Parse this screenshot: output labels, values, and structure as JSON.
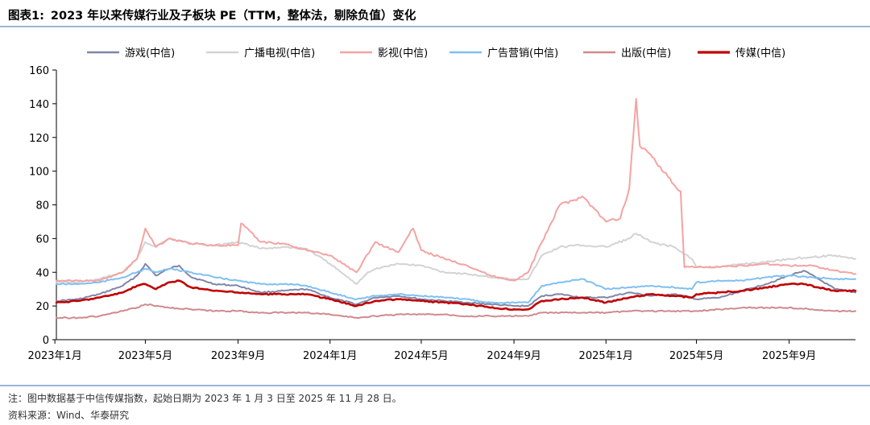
{
  "figure": {
    "label": "图表1:",
    "title": "2023 年以来传媒行业及子板块 PE（TTM，整体法，剔除负值）变化"
  },
  "chart_data": {
    "type": "line",
    "y_axis": {
      "min": 0,
      "max": 160,
      "ticks": [
        0,
        20,
        40,
        60,
        80,
        100,
        120,
        140,
        160
      ]
    },
    "x_axis": {
      "start": "2023-01-03",
      "end": "2025-11-28",
      "tick_dates": [
        "2023-01-01",
        "2023-05-01",
        "2023-09-01",
        "2024-01-01",
        "2024-05-01",
        "2024-09-01",
        "2025-01-01",
        "2025-05-01",
        "2025-09-01"
      ],
      "tick_labels": [
        "2023年1月",
        "2023年5月",
        "2023年9月",
        "2024年1月",
        "2024年5月",
        "2024年9月",
        "2025年1月",
        "2025年5月",
        "2025年9月"
      ]
    },
    "grid": false,
    "legend_position": "top",
    "series": [
      {
        "name": "游戏(中信)",
        "color": "#7f86a8",
        "width": 2.6,
        "points": [
          [
            "2023-01-03",
            23
          ],
          [
            "2023-02-01",
            24
          ],
          [
            "2023-03-01",
            27
          ],
          [
            "2023-04-01",
            32
          ],
          [
            "2023-04-20",
            38
          ],
          [
            "2023-05-01",
            45
          ],
          [
            "2023-05-15",
            38
          ],
          [
            "2023-06-01",
            42
          ],
          [
            "2023-06-15",
            44
          ],
          [
            "2023-07-01",
            37
          ],
          [
            "2023-08-01",
            33
          ],
          [
            "2023-09-01",
            32
          ],
          [
            "2023-10-01",
            28
          ],
          [
            "2023-11-01",
            29
          ],
          [
            "2023-12-01",
            30
          ],
          [
            "2024-01-01",
            25
          ],
          [
            "2024-02-05",
            21
          ],
          [
            "2024-03-01",
            25
          ],
          [
            "2024-04-01",
            26
          ],
          [
            "2024-05-01",
            24
          ],
          [
            "2024-06-01",
            23
          ],
          [
            "2024-07-01",
            22
          ],
          [
            "2024-08-01",
            21
          ],
          [
            "2024-09-01",
            20
          ],
          [
            "2024-09-20",
            20
          ],
          [
            "2024-10-08",
            26
          ],
          [
            "2024-11-01",
            27
          ],
          [
            "2024-12-01",
            25
          ],
          [
            "2025-01-01",
            25
          ],
          [
            "2025-02-01",
            28
          ],
          [
            "2025-03-01",
            26
          ],
          [
            "2025-04-01",
            27
          ],
          [
            "2025-04-25",
            25
          ],
          [
            "2025-05-01",
            24
          ],
          [
            "2025-06-01",
            25
          ],
          [
            "2025-07-01",
            29
          ],
          [
            "2025-08-01",
            33
          ],
          [
            "2025-09-01",
            38
          ],
          [
            "2025-09-20",
            41
          ],
          [
            "2025-10-10",
            36
          ],
          [
            "2025-11-01",
            30
          ],
          [
            "2025-11-28",
            28
          ]
        ]
      },
      {
        "name": "广播电视(中信)",
        "color": "#d3d3d3",
        "width": 2.6,
        "points": [
          [
            "2023-01-03",
            34
          ],
          [
            "2023-02-01",
            34
          ],
          [
            "2023-03-01",
            36
          ],
          [
            "2023-04-01",
            40
          ],
          [
            "2023-04-20",
            48
          ],
          [
            "2023-05-01",
            58
          ],
          [
            "2023-05-15",
            55
          ],
          [
            "2023-06-01",
            60
          ],
          [
            "2023-07-01",
            57
          ],
          [
            "2023-08-01",
            56
          ],
          [
            "2023-09-01",
            58
          ],
          [
            "2023-10-01",
            54
          ],
          [
            "2023-11-01",
            55
          ],
          [
            "2023-12-01",
            54
          ],
          [
            "2024-01-01",
            45
          ],
          [
            "2024-02-05",
            33
          ],
          [
            "2024-02-20",
            40
          ],
          [
            "2024-03-01",
            42
          ],
          [
            "2024-04-01",
            45
          ],
          [
            "2024-05-01",
            44
          ],
          [
            "2024-06-01",
            40
          ],
          [
            "2024-07-01",
            39
          ],
          [
            "2024-08-01",
            37
          ],
          [
            "2024-09-01",
            36
          ],
          [
            "2024-09-20",
            36
          ],
          [
            "2024-10-08",
            50
          ],
          [
            "2024-11-01",
            55
          ],
          [
            "2024-12-01",
            56
          ],
          [
            "2025-01-01",
            55
          ],
          [
            "2025-02-01",
            60
          ],
          [
            "2025-02-10",
            63
          ],
          [
            "2025-03-01",
            58
          ],
          [
            "2025-04-01",
            55
          ],
          [
            "2025-04-25",
            48
          ],
          [
            "2025-05-01",
            43
          ],
          [
            "2025-06-01",
            43
          ],
          [
            "2025-07-01",
            45
          ],
          [
            "2025-08-01",
            46
          ],
          [
            "2025-09-01",
            48
          ],
          [
            "2025-10-01",
            49
          ],
          [
            "2025-11-01",
            50
          ],
          [
            "2025-11-28",
            48
          ]
        ]
      },
      {
        "name": "影视(中信)",
        "color": "#f4a3a3",
        "width": 2.6,
        "points": [
          [
            "2023-01-03",
            35
          ],
          [
            "2023-02-01",
            35
          ],
          [
            "2023-03-01",
            35
          ],
          [
            "2023-04-01",
            40
          ],
          [
            "2023-04-20",
            48
          ],
          [
            "2023-05-01",
            66
          ],
          [
            "2023-05-15",
            55
          ],
          [
            "2023-06-01",
            60
          ],
          [
            "2023-07-01",
            57
          ],
          [
            "2023-08-01",
            56
          ],
          [
            "2023-09-01",
            56
          ],
          [
            "2023-09-05",
            69
          ],
          [
            "2023-10-01",
            58
          ],
          [
            "2023-11-01",
            57
          ],
          [
            "2023-12-01",
            53
          ],
          [
            "2024-01-01",
            50
          ],
          [
            "2024-02-05",
            40
          ],
          [
            "2024-03-01",
            58
          ],
          [
            "2024-03-15",
            55
          ],
          [
            "2024-04-01",
            52
          ],
          [
            "2024-04-20",
            66
          ],
          [
            "2024-05-01",
            53
          ],
          [
            "2024-06-01",
            48
          ],
          [
            "2024-07-01",
            44
          ],
          [
            "2024-08-01",
            38
          ],
          [
            "2024-09-01",
            35
          ],
          [
            "2024-09-20",
            40
          ],
          [
            "2024-10-08",
            58
          ],
          [
            "2024-11-01",
            80
          ],
          [
            "2024-12-01",
            85
          ],
          [
            "2025-01-01",
            70
          ],
          [
            "2025-01-20",
            72
          ],
          [
            "2025-02-01",
            90
          ],
          [
            "2025-02-10",
            143
          ],
          [
            "2025-02-15",
            115
          ],
          [
            "2025-03-01",
            110
          ],
          [
            "2025-04-01",
            92
          ],
          [
            "2025-04-10",
            88
          ],
          [
            "2025-04-15",
            43
          ],
          [
            "2025-05-01",
            43
          ],
          [
            "2025-06-01",
            43
          ],
          [
            "2025-07-01",
            44
          ],
          [
            "2025-08-01",
            45
          ],
          [
            "2025-09-01",
            44
          ],
          [
            "2025-10-01",
            44
          ],
          [
            "2025-11-01",
            41
          ],
          [
            "2025-11-28",
            39
          ]
        ]
      },
      {
        "name": "广告营销(中信)",
        "color": "#7fc0f0",
        "width": 2.6,
        "points": [
          [
            "2023-01-03",
            33
          ],
          [
            "2023-02-01",
            33
          ],
          [
            "2023-03-01",
            34
          ],
          [
            "2023-04-01",
            37
          ],
          [
            "2023-04-20",
            40
          ],
          [
            "2023-05-01",
            42
          ],
          [
            "2023-05-15",
            40
          ],
          [
            "2023-06-01",
            42
          ],
          [
            "2023-07-01",
            40
          ],
          [
            "2023-08-01",
            37
          ],
          [
            "2023-09-01",
            35
          ],
          [
            "2023-10-01",
            33
          ],
          [
            "2023-11-01",
            33
          ],
          [
            "2023-12-01",
            32
          ],
          [
            "2024-01-01",
            28
          ],
          [
            "2024-02-05",
            24
          ],
          [
            "2024-03-01",
            26
          ],
          [
            "2024-04-01",
            27
          ],
          [
            "2024-05-01",
            26
          ],
          [
            "2024-06-01",
            25
          ],
          [
            "2024-07-01",
            24
          ],
          [
            "2024-08-01",
            22
          ],
          [
            "2024-09-01",
            22
          ],
          [
            "2024-09-20",
            22
          ],
          [
            "2024-10-08",
            32
          ],
          [
            "2024-11-01",
            34
          ],
          [
            "2024-12-01",
            36
          ],
          [
            "2025-01-01",
            30
          ],
          [
            "2025-02-01",
            31
          ],
          [
            "2025-03-01",
            32
          ],
          [
            "2025-04-01",
            31
          ],
          [
            "2025-04-25",
            30
          ],
          [
            "2025-05-01",
            34
          ],
          [
            "2025-06-01",
            35
          ],
          [
            "2025-07-01",
            35
          ],
          [
            "2025-08-01",
            37
          ],
          [
            "2025-09-01",
            38
          ],
          [
            "2025-10-01",
            37
          ],
          [
            "2025-11-01",
            36
          ],
          [
            "2025-11-28",
            36
          ]
        ]
      },
      {
        "name": "出版(中信)",
        "color": "#cf8a8e",
        "width": 2.6,
        "points": [
          [
            "2023-01-03",
            13
          ],
          [
            "2023-02-01",
            13
          ],
          [
            "2023-03-01",
            14
          ],
          [
            "2023-04-01",
            17
          ],
          [
            "2023-04-20",
            19
          ],
          [
            "2023-05-01",
            21
          ],
          [
            "2023-06-01",
            19
          ],
          [
            "2023-07-01",
            18
          ],
          [
            "2023-08-01",
            17
          ],
          [
            "2023-09-01",
            17
          ],
          [
            "2023-10-01",
            16
          ],
          [
            "2023-11-01",
            16
          ],
          [
            "2023-12-01",
            16
          ],
          [
            "2024-01-01",
            15
          ],
          [
            "2024-02-05",
            13
          ],
          [
            "2024-03-01",
            14
          ],
          [
            "2024-04-01",
            15
          ],
          [
            "2024-05-01",
            15
          ],
          [
            "2024-06-01",
            15
          ],
          [
            "2024-07-01",
            14
          ],
          [
            "2024-08-01",
            14
          ],
          [
            "2024-09-01",
            14
          ],
          [
            "2024-09-20",
            14
          ],
          [
            "2024-10-08",
            16
          ],
          [
            "2024-11-01",
            16
          ],
          [
            "2024-12-01",
            16
          ],
          [
            "2025-01-01",
            16
          ],
          [
            "2025-02-01",
            17
          ],
          [
            "2025-03-01",
            17
          ],
          [
            "2025-04-01",
            17
          ],
          [
            "2025-05-01",
            17
          ],
          [
            "2025-06-01",
            18
          ],
          [
            "2025-07-01",
            19
          ],
          [
            "2025-08-01",
            19
          ],
          [
            "2025-09-01",
            19
          ],
          [
            "2025-10-01",
            18
          ],
          [
            "2025-11-01",
            17
          ],
          [
            "2025-11-28",
            17
          ]
        ]
      },
      {
        "name": "传媒(中信)",
        "color": "#c00000",
        "width": 3.2,
        "points": [
          [
            "2023-01-03",
            22
          ],
          [
            "2023-02-01",
            23
          ],
          [
            "2023-03-01",
            25
          ],
          [
            "2023-04-01",
            28
          ],
          [
            "2023-04-20",
            32
          ],
          [
            "2023-05-01",
            33
          ],
          [
            "2023-05-15",
            30
          ],
          [
            "2023-06-01",
            34
          ],
          [
            "2023-06-15",
            35
          ],
          [
            "2023-07-01",
            31
          ],
          [
            "2023-08-01",
            29
          ],
          [
            "2023-09-01",
            28
          ],
          [
            "2023-10-01",
            27
          ],
          [
            "2023-11-01",
            27
          ],
          [
            "2023-12-01",
            27
          ],
          [
            "2024-01-01",
            24
          ],
          [
            "2024-02-05",
            20
          ],
          [
            "2024-03-01",
            23
          ],
          [
            "2024-04-01",
            24
          ],
          [
            "2024-05-01",
            23
          ],
          [
            "2024-06-01",
            22
          ],
          [
            "2024-07-01",
            21
          ],
          [
            "2024-08-01",
            19
          ],
          [
            "2024-09-01",
            18
          ],
          [
            "2024-09-20",
            18
          ],
          [
            "2024-10-08",
            23
          ],
          [
            "2024-11-01",
            24
          ],
          [
            "2024-12-01",
            25
          ],
          [
            "2025-01-01",
            22
          ],
          [
            "2025-02-01",
            25
          ],
          [
            "2025-03-01",
            27
          ],
          [
            "2025-04-01",
            26
          ],
          [
            "2025-04-25",
            25
          ],
          [
            "2025-05-01",
            27
          ],
          [
            "2025-06-01",
            28
          ],
          [
            "2025-07-01",
            29
          ],
          [
            "2025-08-01",
            31
          ],
          [
            "2025-09-01",
            33
          ],
          [
            "2025-09-20",
            33
          ],
          [
            "2025-10-10",
            31
          ],
          [
            "2025-11-01",
            29
          ],
          [
            "2025-11-28",
            29
          ]
        ]
      }
    ]
  },
  "notes": {
    "line1": "注：图中数据基于中信传媒指数，起始日期为 2023 年 1 月 3 日至 2025 年 11 月 28 日。",
    "line2": "资料来源：Wind、华泰研究"
  }
}
